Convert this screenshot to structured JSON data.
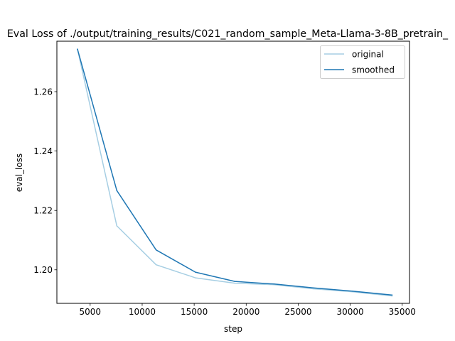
{
  "chart_data": {
    "type": "line",
    "title": "Eval Loss of ./output/training_results/C021_random_sample_Meta-Llama-3-8B_pretrain_",
    "xlabel": "step",
    "ylabel": "eval_loss",
    "xlim": [
      1800,
      35700
    ],
    "ylim": [
      1.1887,
      1.277
    ],
    "xticks": [
      5000,
      10000,
      15000,
      20000,
      25000,
      30000,
      35000
    ],
    "yticks": [
      1.2,
      1.22,
      1.24,
      1.26
    ],
    "ytick_labels": [
      "1.20",
      "1.22",
      "1.24",
      "1.26"
    ],
    "legend_position": "top-right",
    "grid": false,
    "series": [
      {
        "name": "original",
        "color": "#a6cee3",
        "x": [
          3780,
          7560,
          11340,
          15120,
          18900,
          22680,
          26460,
          30240,
          34020
        ],
        "y": [
          1.2743,
          1.2148,
          1.2017,
          1.1973,
          1.1955,
          1.195,
          1.1936,
          1.1926,
          1.1912
        ]
      },
      {
        "name": "smoothed",
        "color": "#1f77b4",
        "x": [
          3780,
          7560,
          11340,
          15120,
          18900,
          22680,
          26460,
          30240,
          34020
        ],
        "y": [
          1.2743,
          1.2267,
          1.2067,
          1.1992,
          1.1961,
          1.1952,
          1.1939,
          1.1928,
          1.1915
        ]
      }
    ]
  }
}
